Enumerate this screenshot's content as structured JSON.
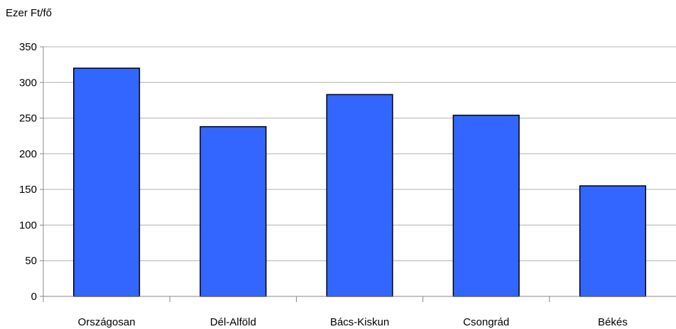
{
  "chart_data": {
    "type": "bar",
    "ylabel": "Ezer Ft/fő",
    "categories": [
      "Országosan",
      "Dél-Alföld",
      "Bács-Kiskun",
      "Csongrád",
      "Békés"
    ],
    "values": [
      320,
      238,
      283,
      254,
      155
    ],
    "ylim": [
      0,
      350
    ],
    "yticks": [
      0,
      50,
      100,
      150,
      200,
      250,
      300,
      350
    ],
    "grid": true,
    "bar_color": "#3366FF",
    "bar_edge_color": "#000000",
    "grid_color": "#B0B0B0"
  }
}
